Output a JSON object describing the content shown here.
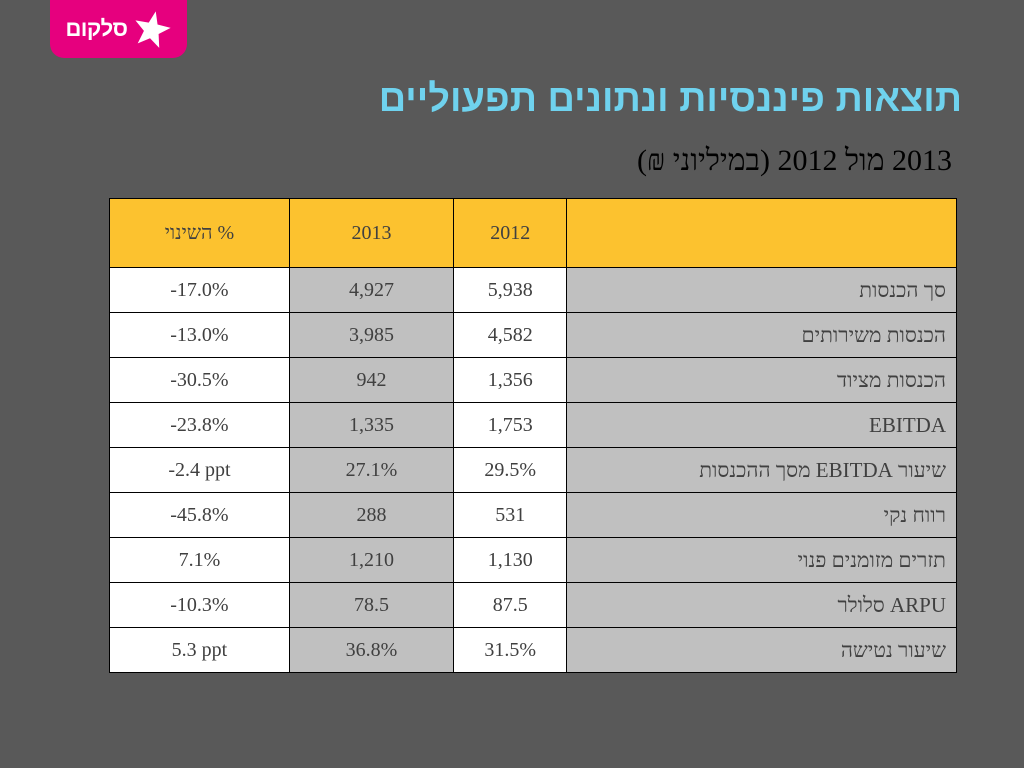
{
  "logo": {
    "text": "סלקום",
    "icon": "star-icon",
    "bg_color": "#e6007e"
  },
  "title": "תוצאות פיננסיות ונתונים תפעוליים",
  "subtitle": "2013 מול 2012 (במיליוני ₪)",
  "colors": {
    "background": "#595959",
    "title": "#6fd2ee",
    "header": "#fcc22f",
    "shaded_cell": "#c0c0c0"
  },
  "table": {
    "headers": {
      "label": "",
      "y2012": "2012",
      "y2013": "2013",
      "change": "% השינוי"
    },
    "rows": [
      {
        "label": "סך הכנסות",
        "y2012": "5,938",
        "y2013": "4,927",
        "change": "-17.0%"
      },
      {
        "label": "הכנסות משירותים",
        "y2012": "4,582",
        "y2013": "3,985",
        "change": "-13.0%"
      },
      {
        "label": "הכנסות מציוד",
        "y2012": "1,356",
        "y2013": "942",
        "change": "-30.5%"
      },
      {
        "label": "EBITDA",
        "y2012": "1,753",
        "y2013": "1,335",
        "change": "-23.8%"
      },
      {
        "label": "שיעור EBITDA מסך ההכנסות",
        "y2012": "29.5%",
        "y2013": "27.1%",
        "change": "-2.4 ppt"
      },
      {
        "label": "רווח נקי",
        "y2012": "531",
        "y2013": "288",
        "change": "-45.8%"
      },
      {
        "label": "תזרים מזומנים פנוי",
        "y2012": "1,130",
        "y2013": "1,210",
        "change": "7.1%"
      },
      {
        "label": "ARPU סלולר",
        "y2012": "87.5",
        "y2013": "78.5",
        "change": "-10.3%"
      },
      {
        "label": "שיעור נטישה",
        "y2012": "31.5%",
        "y2013": "36.8%",
        "change": "5.3 ppt"
      }
    ]
  }
}
